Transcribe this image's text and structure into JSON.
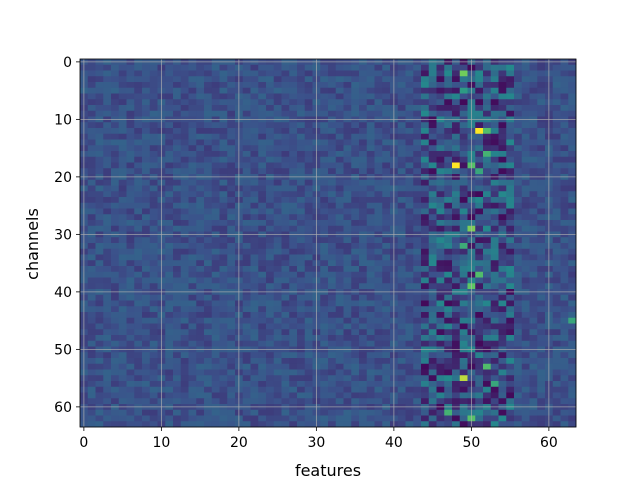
{
  "chart_data": {
    "type": "heatmap",
    "title": "",
    "xlabel": "features",
    "ylabel": "channels",
    "rows": 64,
    "cols": 64,
    "xlim": [
      -0.5,
      63.5
    ],
    "ylim": [
      63.5,
      -0.5
    ],
    "y_inverted": true,
    "xticks": [
      0,
      10,
      20,
      30,
      40,
      50,
      60
    ],
    "yticks": [
      0,
      10,
      20,
      30,
      40,
      50,
      60
    ],
    "grid": true,
    "colormap": "viridis",
    "colormap_stops": [
      "#440154",
      "#3b528b",
      "#21908c",
      "#5dc863",
      "#fde725"
    ],
    "value_range": [
      0,
      1
    ],
    "typical_value": 0.25,
    "high_variance_band_cols": [
      44,
      55
    ],
    "hotspots": [
      {
        "row": 2,
        "col": 49,
        "value": 0.78
      },
      {
        "row": 3,
        "col": 48,
        "value": 0.05
      },
      {
        "row": 4,
        "col": 50,
        "value": 0.05
      },
      {
        "row": 5,
        "col": 49,
        "value": 0.55
      },
      {
        "row": 7,
        "col": 47,
        "value": 0.04
      },
      {
        "row": 12,
        "col": 51,
        "value": 1.0
      },
      {
        "row": 12,
        "col": 52,
        "value": 0.7
      },
      {
        "row": 16,
        "col": 52,
        "value": 0.65
      },
      {
        "row": 18,
        "col": 48,
        "value": 1.0
      },
      {
        "row": 18,
        "col": 50,
        "value": 0.72
      },
      {
        "row": 19,
        "col": 51,
        "value": 0.6
      },
      {
        "row": 29,
        "col": 50,
        "value": 0.8
      },
      {
        "row": 32,
        "col": 49,
        "value": 0.62
      },
      {
        "row": 37,
        "col": 51,
        "value": 0.7
      },
      {
        "row": 39,
        "col": 50,
        "value": 0.75
      },
      {
        "row": 45,
        "col": 63,
        "value": 0.6
      },
      {
        "row": 53,
        "col": 52,
        "value": 0.7
      },
      {
        "row": 55,
        "col": 49,
        "value": 0.9
      },
      {
        "row": 56,
        "col": 53,
        "value": 0.6
      },
      {
        "row": 61,
        "col": 47,
        "value": 0.65
      },
      {
        "row": 62,
        "col": 50,
        "value": 0.72
      }
    ]
  }
}
